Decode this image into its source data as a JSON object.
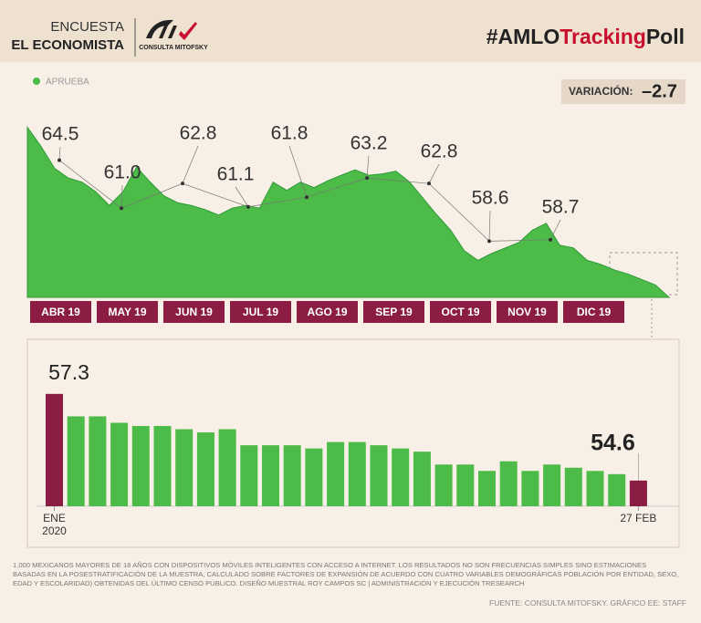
{
  "header": {
    "line1": "ENCUESTA",
    "line2": "EL ECONOMISTA",
    "logo": "CONSULTA MITOFSKY",
    "hashtag_a": "#AMLO",
    "hashtag_b": "Tracking",
    "hashtag_c": "Poll"
  },
  "variation": {
    "label": "VARIACIÓN:",
    "value": "–2.7"
  },
  "chart_data": [
    {
      "type": "area",
      "series": [
        {
          "name": "APRUEBA",
          "color": "#4cbb47",
          "values": [
            66.9,
            65.5,
            63.9,
            63.2,
            62.9,
            62.2,
            61.2,
            62.2,
            64.0,
            62.9,
            61.9,
            61.4,
            61.2,
            60.9,
            60.5,
            61.0,
            61.2,
            61.0,
            62.9,
            62.3,
            62.9,
            62.5,
            63.0,
            63.4,
            63.8,
            63.4,
            63.5,
            63.7,
            62.9,
            61.7,
            60.5,
            59.4,
            57.9,
            57.2,
            57.7,
            58.1,
            58.5,
            59.4,
            59.9,
            58.3,
            58.1,
            57.2,
            56.9,
            56.5,
            56.2,
            55.8,
            55.4,
            54.5
          ]
        }
      ],
      "ylim": [
        54.5,
        67
      ],
      "month_labels": [
        "ABR 19",
        "MAY 19",
        "JUN 19",
        "JUL 19",
        "AGO 19",
        "SEP 19",
        "OCT 19",
        "NOV 19",
        "DIC 19"
      ],
      "month_color": "#8b1d45",
      "annotations": [
        {
          "value": 64.5,
          "label": "64.5"
        },
        {
          "value": 61,
          "label": "61.0"
        },
        {
          "value": 62.8,
          "label": "62.8"
        },
        {
          "value": 61.1,
          "label": "61.1"
        },
        {
          "value": 61.8,
          "label": "61.8"
        },
        {
          "value": 63.2,
          "label": "63.2"
        },
        {
          "value": 62.8,
          "label": "62.8"
        },
        {
          "value": 58.6,
          "label": "58.6"
        },
        {
          "value": 58.7,
          "label": "58.7"
        }
      ]
    },
    {
      "type": "bar",
      "categories": [
        "ENE 2020",
        null,
        null,
        null,
        null,
        null,
        null,
        null,
        null,
        null,
        null,
        null,
        null,
        null,
        null,
        null,
        null,
        null,
        null,
        null,
        null,
        null,
        null,
        null,
        null,
        null,
        null,
        "27 FEB"
      ],
      "values": [
        57.3,
        56.6,
        56.6,
        56.4,
        56.3,
        56.3,
        56.2,
        56.1,
        56.2,
        55.7,
        55.7,
        55.7,
        55.6,
        55.8,
        55.8,
        55.7,
        55.6,
        55.5,
        55.1,
        55.1,
        54.9,
        55.2,
        54.9,
        55.1,
        55.0,
        54.9,
        54.8,
        54.6
      ],
      "colors": [
        "#8b1d45",
        "#4cbb47",
        "#4cbb47",
        "#4cbb47",
        "#4cbb47",
        "#4cbb47",
        "#4cbb47",
        "#4cbb47",
        "#4cbb47",
        "#4cbb47",
        "#4cbb47",
        "#4cbb47",
        "#4cbb47",
        "#4cbb47",
        "#4cbb47",
        "#4cbb47",
        "#4cbb47",
        "#4cbb47",
        "#4cbb47",
        "#4cbb47",
        "#4cbb47",
        "#4cbb47",
        "#4cbb47",
        "#4cbb47",
        "#4cbb47",
        "#4cbb47",
        "#4cbb47",
        "#8b1d45"
      ],
      "ylim": [
        53.8,
        57.5
      ],
      "labeled_bars": [
        0,
        27
      ]
    }
  ],
  "footnote": "1,000 mexicanos mayores de 18 años con dispositivos móviles inteligentes con acceso a internet. Los resultados no son frecuencias simples sino estimaciones basadas en la posestratificación de la muestra, calculado sobre factores de expansión de acuerdo con cuatro variables demográficas población por entidad, sexo, edad y escolaridad) obtenidas del último censo público. Diseño muestral Roy Campos SC | Administración y ejecución Tresearch",
  "source": "FUENTE: CONSULTA MITOFSKY. GRÁFICO EE: STAFF"
}
